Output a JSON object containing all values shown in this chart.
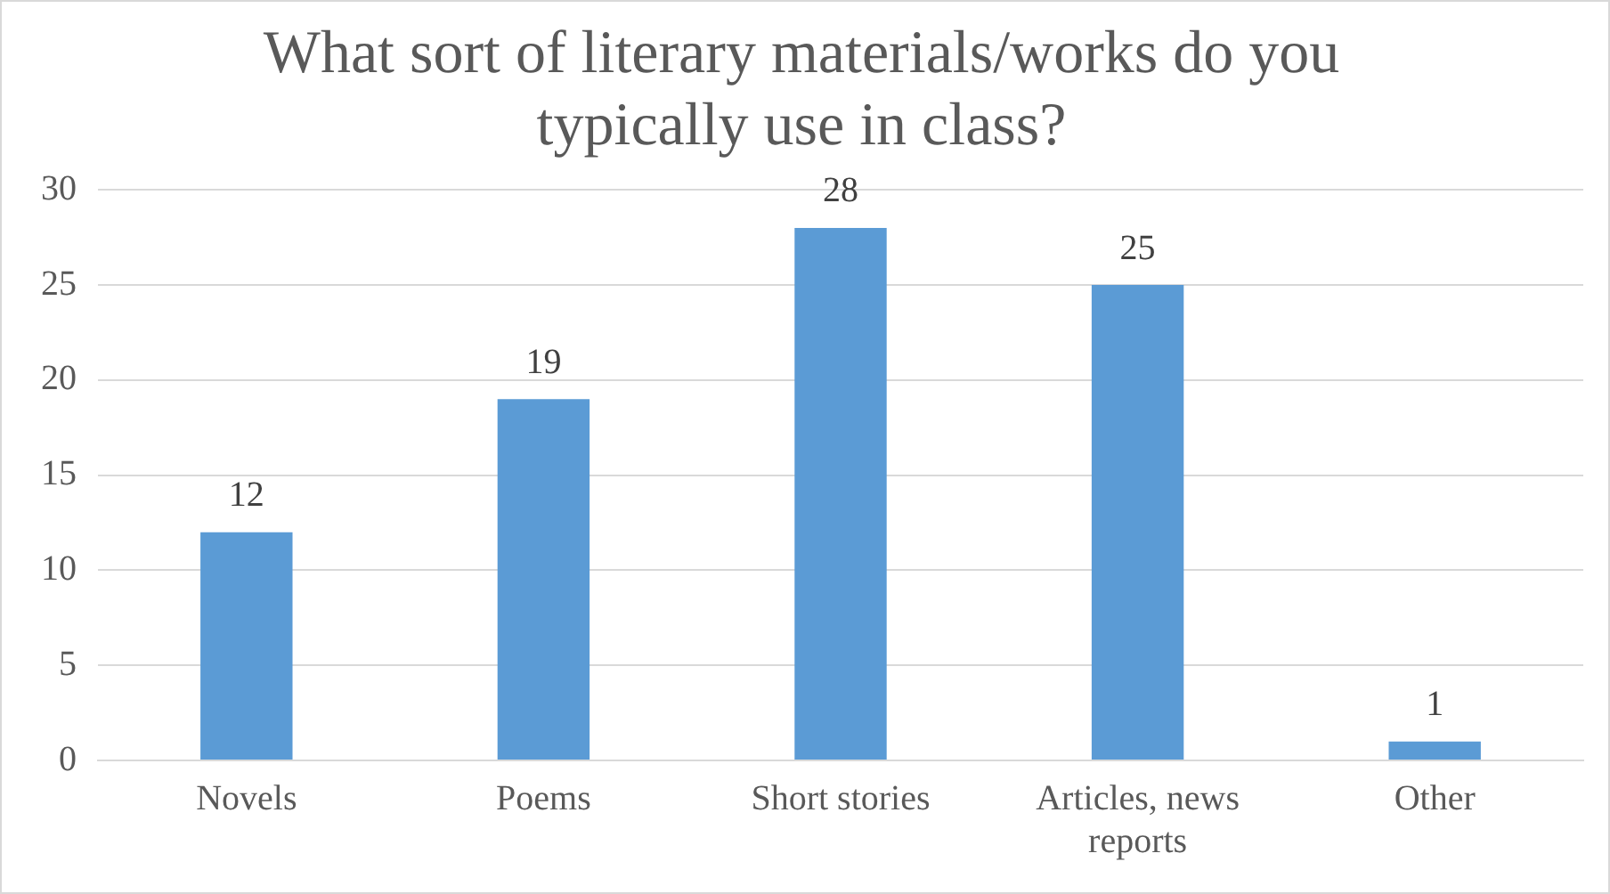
{
  "chart_data": {
    "type": "bar",
    "title": "What sort of literary materials/works do you typically use in class?",
    "categories": [
      "Novels",
      "Poems",
      "Short stories",
      "Articles, news reports",
      "Other"
    ],
    "values": [
      12,
      19,
      28,
      25,
      1
    ],
    "color": "#5b9bd5",
    "ylim": [
      0,
      30
    ],
    "yticks": [
      0,
      5,
      10,
      15,
      20,
      25,
      30
    ],
    "grid": "y",
    "data_labels": true,
    "legend": false
  }
}
